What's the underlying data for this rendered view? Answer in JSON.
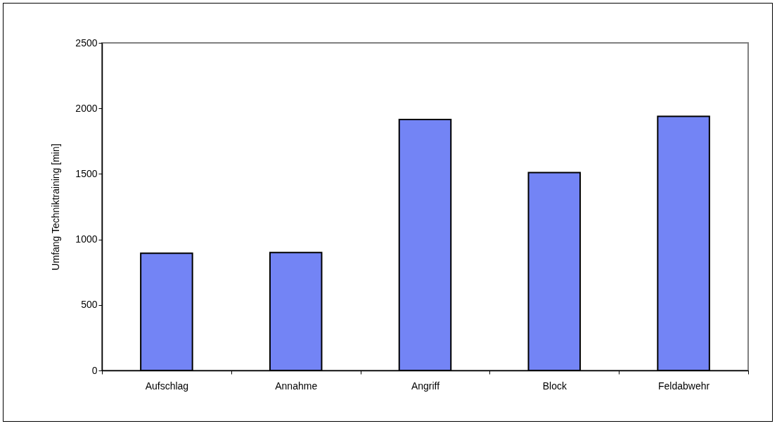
{
  "chart_data": {
    "type": "bar",
    "ylabel": "Umfang Techniktraining [min]",
    "categories": [
      "Aufschlag",
      "Annahme",
      "Angriff",
      "Block",
      "Feldabwehr"
    ],
    "values": [
      895,
      900,
      1915,
      1510,
      1940
    ],
    "color": "#7384f5",
    "ylim": [
      0,
      2500
    ],
    "yticks": [
      0,
      500,
      1000,
      1500,
      2000,
      2500
    ],
    "grid": false
  }
}
